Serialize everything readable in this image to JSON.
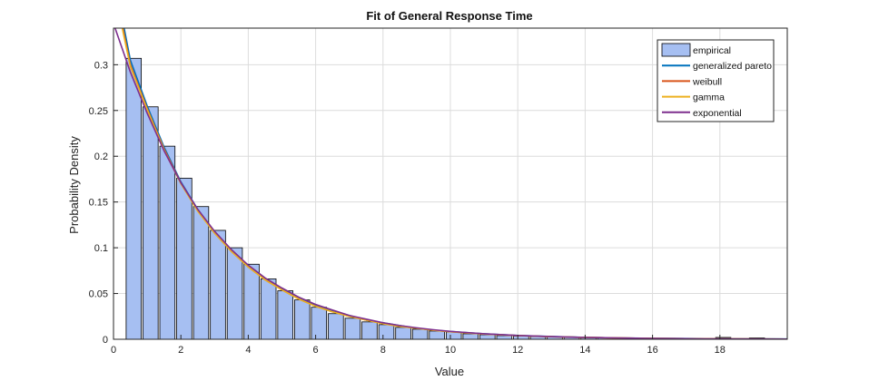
{
  "chart_data": {
    "type": "bar",
    "title": "Fit of General Response Time",
    "xlabel": "Value",
    "ylabel": "Probability Density",
    "xlim": [
      0,
      20
    ],
    "ylim": [
      0,
      0.34
    ],
    "grid": true,
    "legend_position": "top-right",
    "x_ticks": [
      0,
      2,
      4,
      6,
      8,
      10,
      12,
      14,
      16,
      18
    ],
    "y_ticks": [
      0,
      0.05,
      0.1,
      0.15,
      0.2,
      0.25,
      0.3
    ],
    "y_tick_labels": [
      "0",
      "0.05",
      "0.1",
      "0.15",
      "0.2",
      "0.25",
      "0.3"
    ],
    "histogram": {
      "name": "empirical",
      "bin_width": 0.5,
      "bar_width": 0.45,
      "centers": [
        0.6,
        1.1,
        1.6,
        2.1,
        2.6,
        3.1,
        3.6,
        4.1,
        4.6,
        5.1,
        5.6,
        6.1,
        6.6,
        7.1,
        7.6,
        8.1,
        8.6,
        9.1,
        9.6,
        10.1,
        10.6,
        11.1,
        11.6,
        12.1,
        12.6,
        13.1,
        13.6,
        14.1,
        14.6,
        15.1,
        15.6,
        16.1,
        16.6,
        17.1,
        17.6,
        18.1,
        18.6,
        19.1
      ],
      "values": [
        0.307,
        0.254,
        0.211,
        0.176,
        0.145,
        0.119,
        0.1,
        0.082,
        0.066,
        0.053,
        0.043,
        0.035,
        0.028,
        0.023,
        0.019,
        0.016,
        0.013,
        0.011,
        0.009,
        0.008,
        0.006,
        0.005,
        0.004,
        0.0035,
        0.003,
        0.0025,
        0.002,
        0.0018,
        0.0015,
        0.0012,
        0.001,
        0.0008,
        0.0007,
        0.0006,
        0.0005,
        0.002,
        0.0004,
        0.0015
      ]
    },
    "series": [
      {
        "name": "generalized pareto",
        "type": "line",
        "color": "#0072BD",
        "x": [
          0,
          0.5,
          1,
          1.5,
          2,
          2.5,
          3,
          3.5,
          4,
          4.5,
          5,
          5.5,
          6,
          6.5,
          7,
          7.5,
          8,
          8.5,
          9,
          9.5,
          10,
          11,
          12,
          13,
          14,
          15,
          16,
          17,
          18,
          19,
          20
        ],
        "y": [
          0.4,
          0.305,
          0.255,
          0.21,
          0.172,
          0.142,
          0.117,
          0.097,
          0.08,
          0.066,
          0.055,
          0.045,
          0.037,
          0.031,
          0.026,
          0.021,
          0.018,
          0.015,
          0.012,
          0.01,
          0.0085,
          0.006,
          0.0042,
          0.003,
          0.0021,
          0.0015,
          0.0011,
          0.0008,
          0.0006,
          0.0004,
          0.0003
        ]
      },
      {
        "name": "weibull",
        "type": "line",
        "color": "#D95319",
        "x": [
          0,
          0.5,
          1,
          1.5,
          2,
          2.5,
          3,
          3.5,
          4,
          4.5,
          5,
          5.5,
          6,
          6.5,
          7,
          7.5,
          8,
          8.5,
          9,
          9.5,
          10,
          11,
          12,
          13,
          14,
          15,
          16,
          17,
          18,
          19,
          20
        ],
        "y": [
          0.39,
          0.3,
          0.252,
          0.208,
          0.171,
          0.141,
          0.116,
          0.096,
          0.079,
          0.065,
          0.054,
          0.044,
          0.036,
          0.03,
          0.025,
          0.021,
          0.017,
          0.014,
          0.012,
          0.0098,
          0.0082,
          0.0057,
          0.004,
          0.0028,
          0.002,
          0.0014,
          0.001,
          0.0007,
          0.0005,
          0.00035,
          0.00025
        ]
      },
      {
        "name": "gamma",
        "type": "line",
        "color": "#EDB120",
        "x": [
          0,
          0.5,
          1,
          1.5,
          2,
          2.5,
          3,
          3.5,
          4,
          4.5,
          5,
          5.5,
          6,
          6.5,
          7,
          7.5,
          8,
          8.5,
          9,
          9.5,
          10,
          11,
          12,
          13,
          14,
          15,
          16,
          17,
          18,
          19,
          20
        ],
        "y": [
          0.385,
          0.298,
          0.251,
          0.207,
          0.17,
          0.14,
          0.116,
          0.096,
          0.079,
          0.065,
          0.054,
          0.044,
          0.036,
          0.03,
          0.025,
          0.021,
          0.017,
          0.014,
          0.012,
          0.0098,
          0.0082,
          0.0057,
          0.004,
          0.0028,
          0.002,
          0.0014,
          0.001,
          0.0007,
          0.0005,
          0.00035,
          0.00025
        ]
      },
      {
        "name": "exponential",
        "type": "line",
        "color": "#7E2F8E",
        "x": [
          0,
          0.5,
          1,
          1.5,
          2,
          2.5,
          3,
          3.5,
          4,
          4.5,
          5,
          5.5,
          6,
          6.5,
          7,
          7.5,
          8,
          8.5,
          9,
          9.5,
          10,
          11,
          12,
          13,
          14,
          15,
          16,
          17,
          18,
          19,
          20
        ],
        "y": [
          0.345,
          0.292,
          0.247,
          0.206,
          0.171,
          0.142,
          0.118,
          0.098,
          0.081,
          0.067,
          0.056,
          0.046,
          0.038,
          0.032,
          0.026,
          0.022,
          0.018,
          0.015,
          0.0125,
          0.0104,
          0.0086,
          0.006,
          0.0041,
          0.0029,
          0.002,
          0.0014,
          0.00095,
          0.00066,
          0.00046,
          0.00032,
          0.00022
        ]
      }
    ],
    "legend_entries": [
      "empirical",
      "generalized pareto",
      "weibull",
      "gamma",
      "exponential"
    ],
    "colors": {
      "bar_fill": "#A6BFF2",
      "bar_edge": "#000000",
      "grid": "#DCDCDC",
      "axis": "#262626"
    }
  }
}
